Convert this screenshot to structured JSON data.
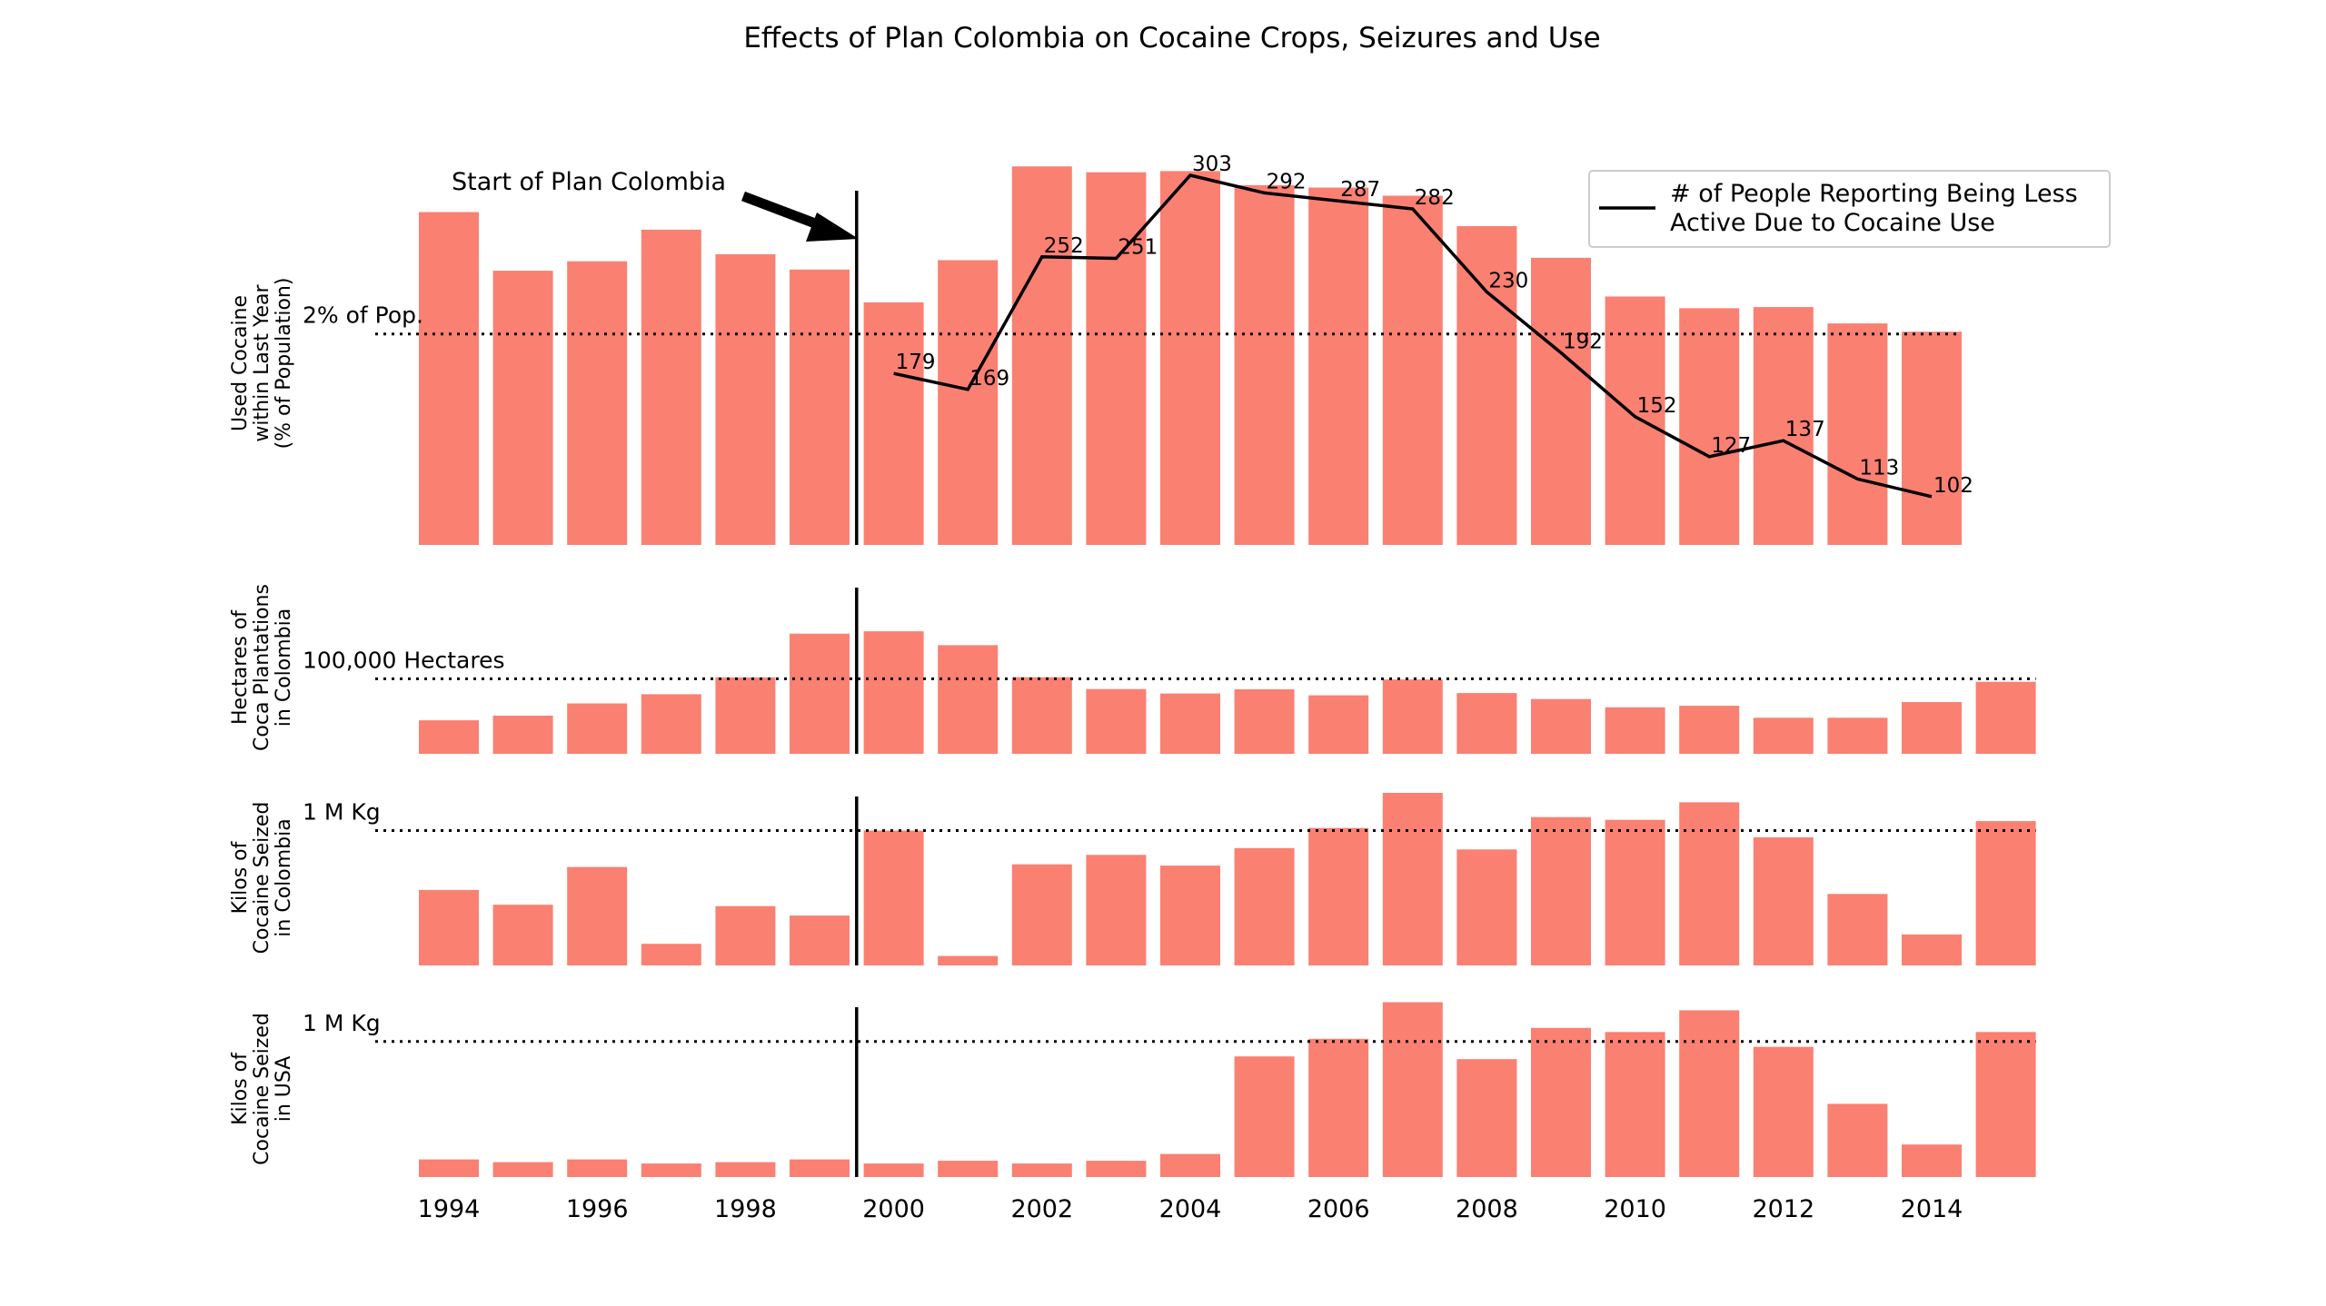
{
  "chart_data": {
    "type": "bar",
    "title": "Effects of Plan Colombia on Cocaine Crops, Seizures and Use",
    "x_ticks": [
      "1994",
      "1996",
      "1998",
      "2000",
      "2002",
      "2004",
      "2006",
      "2008",
      "2010",
      "2012",
      "2014"
    ],
    "x_tick_values": [
      1994,
      1996,
      1998,
      2000,
      2002,
      2004,
      2006,
      2008,
      2010,
      2012,
      2014
    ],
    "bar_color": "#fa8072",
    "line_color": "#000000",
    "annotation": {
      "text": "Start of Plan Colombia",
      "x": 1999.5
    },
    "panels": [
      {
        "id": "use",
        "ylabel": [
          "Used Cocaine",
          "within Last Year",
          "(% of Population)"
        ],
        "ylim": [
          0,
          3.1
        ],
        "reference": {
          "value": 1.8,
          "label": "2% of Pop."
        },
        "bars": {
          "x": [
            1994,
            1995,
            1996,
            1997,
            1998,
            1999,
            2000,
            2001,
            2002,
            2003,
            2004,
            2005,
            2006,
            2007,
            2008,
            2009,
            2010,
            2011,
            2012,
            2013,
            2014
          ],
          "values": [
            2.84,
            2.34,
            2.42,
            2.69,
            2.48,
            2.35,
            2.07,
            2.43,
            3.23,
            3.18,
            3.19,
            3.07,
            3.05,
            2.98,
            2.72,
            2.45,
            2.12,
            2.02,
            2.03,
            1.89,
            1.82
          ]
        },
        "line": {
          "name": "# of People Reporting Being Less Active Due to Cocaine Use",
          "legend_lines": [
            "# of People Reporting Being Less",
            "Active Due to Cocaine Use"
          ],
          "legend_position": "upper-right",
          "x": [
            2000,
            2001,
            2002,
            2003,
            2004,
            2005,
            2006,
            2007,
            2008,
            2009,
            2010,
            2011,
            2012,
            2013,
            2014
          ],
          "values": [
            179,
            169,
            252,
            251,
            303,
            292,
            287,
            282,
            230,
            192,
            152,
            127,
            137,
            113,
            102
          ],
          "labels": [
            "179",
            "169",
            "252",
            "251",
            "303",
            "292",
            "287",
            "282",
            "230",
            "192",
            "152",
            "127",
            "137",
            "113",
            "102"
          ]
        }
      },
      {
        "id": "hectares",
        "ylabel": [
          "Hectares of",
          "Coca Plantations",
          "in Colombia"
        ],
        "ylim": [
          0,
          230000
        ],
        "reference": {
          "value": 100000,
          "label": "100,000 Hectares"
        },
        "bars": {
          "x": [
            1994,
            1995,
            1996,
            1997,
            1998,
            1999,
            2000,
            2001,
            2002,
            2003,
            2004,
            2005,
            2006,
            2007,
            2008,
            2009,
            2010,
            2011,
            2012,
            2013,
            2014,
            2015
          ],
          "values": [
            44700,
            50900,
            67200,
            79400,
            101800,
            160100,
            163300,
            144800,
            102000,
            86300,
            80400,
            86000,
            78000,
            99000,
            81000,
            73000,
            62000,
            64000,
            48000,
            48000,
            69000,
            96000
          ]
        }
      },
      {
        "id": "seized-colombia",
        "ylabel": [
          "Kilos of",
          "Cocaine Seized",
          "in Colombia"
        ],
        "ylim": [
          0,
          1300000
        ],
        "reference": {
          "value": 1000000,
          "label": "1 M Kg"
        },
        "bars": {
          "x": [
            1994,
            1995,
            1996,
            1997,
            1998,
            1999,
            2000,
            2001,
            2002,
            2003,
            2004,
            2005,
            2006,
            2007,
            2008,
            2009,
            2010,
            2011,
            2012,
            2013,
            2014,
            2015
          ],
          "values": [
            560000,
            450000,
            730000,
            160000,
            440000,
            370000,
            1000000,
            70000,
            750000,
            820000,
            740000,
            870000,
            1020000,
            1280000,
            860000,
            1100000,
            1080000,
            1210000,
            950000,
            530000,
            230000,
            1070000
          ]
        }
      },
      {
        "id": "seized-usa",
        "ylabel": [
          "Kilos of",
          "Cocaine Seized",
          "in USA"
        ],
        "ylim": [
          0,
          1300000
        ],
        "reference": {
          "value": 1000000,
          "label": "1 M Kg"
        },
        "bars": {
          "x": [
            1994,
            1995,
            1996,
            1997,
            1998,
            1999,
            2000,
            2001,
            2002,
            2003,
            2004,
            2005,
            2006,
            2007,
            2008,
            2009,
            2010,
            2011,
            2012,
            2013,
            2014,
            2015
          ],
          "values": [
            130000,
            110000,
            130000,
            100000,
            110000,
            130000,
            100000,
            120000,
            100000,
            120000,
            170000,
            890000,
            1020000,
            1290000,
            870000,
            1100000,
            1070000,
            1230000,
            960000,
            540000,
            240000,
            1070000
          ]
        }
      }
    ]
  }
}
